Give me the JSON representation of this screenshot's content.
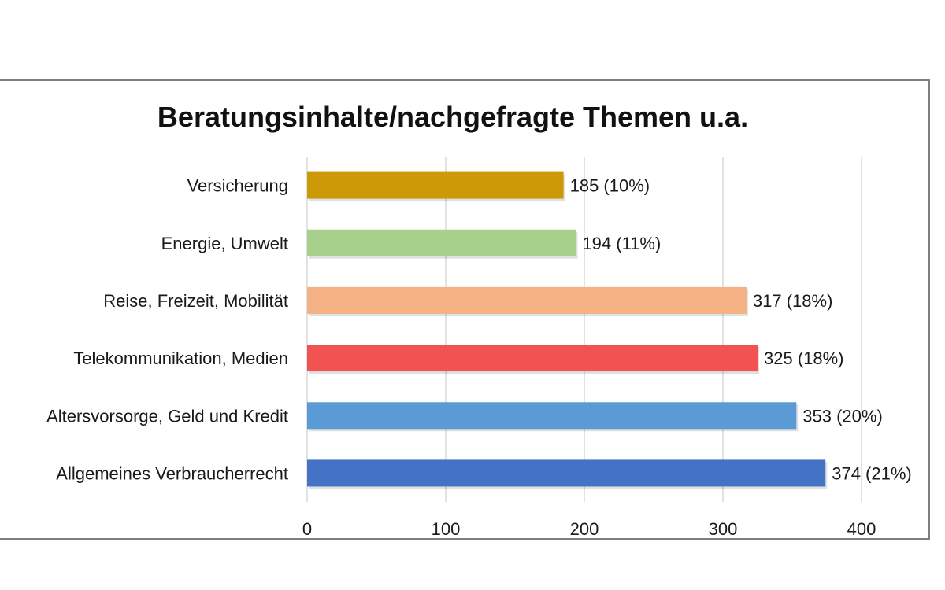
{
  "chart_data": {
    "type": "bar",
    "orientation": "horizontal",
    "title": "Beratungsinhalte/nachgefragte Themen u.a.",
    "xlabel": "",
    "ylabel": "",
    "xlim": [
      0,
      400
    ],
    "grid": true,
    "legend": "none",
    "ticks": [
      "0",
      "100",
      "200",
      "300",
      "400"
    ],
    "tick_values": [
      0,
      100,
      200,
      300,
      400
    ],
    "categories": [
      "Versicherung",
      "Energie, Umwelt",
      "Reise, Freizeit, Mobilität",
      "Telekommunikation, Medien",
      "Altersvorsorge, Geld und Kredit",
      "Allgemeines Verbraucherrecht"
    ],
    "values": [
      185,
      194,
      317,
      325,
      353,
      374
    ],
    "data_labels": [
      "185 (10%)",
      "194 (11%)",
      "317 (18%)",
      "325 (18%)",
      "353 (20%)",
      "374 (21%)"
    ],
    "colors": [
      "#cc9a06",
      "#a8d08d",
      "#f4b183",
      "#f25252",
      "#5b9bd5",
      "#4472c4"
    ]
  }
}
